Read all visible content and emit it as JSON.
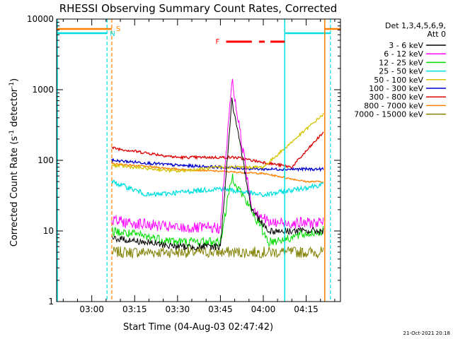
{
  "chart_data": {
    "type": "line",
    "title": "RHESSI Observing Summary Count Rates, Corrected",
    "xlabel": "Start Time (04-Aug-03 02:47:42)",
    "ylabel": "Corrected Count Rate (s⁻¹ detector⁻¹)",
    "ylabel_main": "Corrected Count Rate (s",
    "ylabel_mid": " detector",
    "ylabel_end": ")",
    "ylabel_sup": "-1",
    "y_scale": "log",
    "ylim": [
      1,
      10000
    ],
    "xlim": [
      "02:47:42",
      "04:27:00"
    ],
    "x_ticks": [
      "03:00",
      "03:15",
      "03:30",
      "03:45",
      "04:00",
      "04:15"
    ],
    "y_ticks": [
      "1",
      "10",
      "100",
      "1000",
      "10000"
    ],
    "legend_header": [
      "Det 1,3,4,5,6,9,",
      "Att 0"
    ],
    "footer_date": "21-Oct-2021 20:18",
    "annotations": {
      "saa": "S",
      "night": "N",
      "flare": "F"
    },
    "grid": false,
    "legend_position": "right",
    "series": [
      {
        "name": "3 - 6 keV",
        "color": "#000000",
        "approx_values": [
          {
            "t": "03:07",
            "v": 8
          },
          {
            "t": "03:30",
            "v": 6
          },
          {
            "t": "03:45",
            "v": 6
          },
          {
            "t": "03:49",
            "v": 700
          },
          {
            "t": "03:56",
            "v": 20
          },
          {
            "t": "04:02",
            "v": 10
          }
        ]
      },
      {
        "name": "6 - 12 keV",
        "color": "#ff00ff",
        "approx_values": [
          {
            "t": "03:07",
            "v": 14
          },
          {
            "t": "03:30",
            "v": 11
          },
          {
            "t": "03:45",
            "v": 11
          },
          {
            "t": "03:49",
            "v": 1400
          },
          {
            "t": "03:56",
            "v": 22
          },
          {
            "t": "04:02",
            "v": 13
          }
        ]
      },
      {
        "name": "12 - 25 keV",
        "color": "#00dd00",
        "approx_values": [
          {
            "t": "03:07",
            "v": 10
          },
          {
            "t": "03:30",
            "v": 7
          },
          {
            "t": "03:45",
            "v": 7
          },
          {
            "t": "03:49",
            "v": 60
          },
          {
            "t": "04:02",
            "v": 7
          },
          {
            "t": "04:20",
            "v": 10
          }
        ]
      },
      {
        "name": "25 - 50 keV",
        "color": "#00e0e0",
        "approx_values": [
          {
            "t": "03:07",
            "v": 50
          },
          {
            "t": "03:20",
            "v": 32
          },
          {
            "t": "03:45",
            "v": 40
          },
          {
            "t": "04:00",
            "v": 32
          },
          {
            "t": "04:20",
            "v": 45
          }
        ]
      },
      {
        "name": "50 - 100 keV",
        "color": "#d4c400",
        "approx_values": [
          {
            "t": "03:07",
            "v": 85
          },
          {
            "t": "03:30",
            "v": 70
          },
          {
            "t": "03:45",
            "v": 80
          },
          {
            "t": "04:00",
            "v": 80
          },
          {
            "t": "04:21",
            "v": 450
          }
        ]
      },
      {
        "name": "100 - 300 keV",
        "color": "#0000cc",
        "approx_values": [
          {
            "t": "03:07",
            "v": 100
          },
          {
            "t": "03:30",
            "v": 85
          },
          {
            "t": "04:00",
            "v": 75
          },
          {
            "t": "04:17",
            "v": 75
          }
        ]
      },
      {
        "name": "300 - 800 keV",
        "color": "#dd0000",
        "approx_values": [
          {
            "t": "03:07",
            "v": 150
          },
          {
            "t": "03:30",
            "v": 110
          },
          {
            "t": "03:50",
            "v": 110
          },
          {
            "t": "04:10",
            "v": 80
          },
          {
            "t": "04:21",
            "v": 250
          }
        ]
      },
      {
        "name": "800 - 7000 keV",
        "color": "#ff8000",
        "approx_values": [
          {
            "t": "03:07",
            "v": 90
          },
          {
            "t": "03:30",
            "v": 75
          },
          {
            "t": "04:00",
            "v": 65
          },
          {
            "t": "04:15",
            "v": 50
          }
        ]
      },
      {
        "name": "7000 - 15000 keV",
        "color": "#808000",
        "approx_values": [
          {
            "t": "03:07",
            "v": 5
          },
          {
            "t": "03:30",
            "v": 5
          },
          {
            "t": "04:00",
            "v": 5
          },
          {
            "t": "04:20",
            "v": 5
          }
        ]
      }
    ]
  }
}
